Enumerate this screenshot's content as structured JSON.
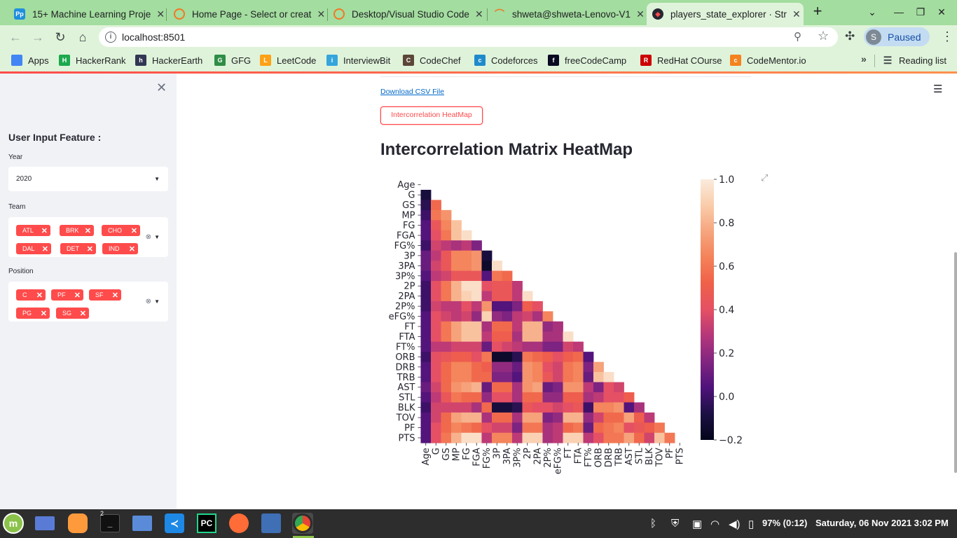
{
  "browser": {
    "tabs": [
      {
        "title": "15+ Machine Learning Proje",
        "icon": "Pp",
        "icon_color": "#1f8fde"
      },
      {
        "title": "Home Page - Select or creat",
        "icon": "",
        "icon_color": "#f37726"
      },
      {
        "title": "Desktop/Visual Studio Code",
        "icon": "",
        "icon_color": "#f37726"
      },
      {
        "title": "shweta@shweta-Lenovo-V1",
        "icon": "",
        "icon_color": "#f37726"
      },
      {
        "title": "players_state_explorer · Str",
        "icon": "",
        "icon_color": "#ff4b4b"
      }
    ],
    "url": "localhost:8501",
    "profile_initial": "S",
    "profile_label": "Paused",
    "bookmarks": [
      {
        "label": "Apps",
        "icon_color": "#4285f4",
        "icon_text": ""
      },
      {
        "label": "HackerRank",
        "icon_color": "#1ba94c",
        "icon_text": "H"
      },
      {
        "label": "HackerEarth",
        "icon_color": "#323754",
        "icon_text": "h"
      },
      {
        "label": "GFG",
        "icon_color": "#2f8d46",
        "icon_text": "G"
      },
      {
        "label": "LeetCode",
        "icon_color": "#ffa116",
        "icon_text": "L"
      },
      {
        "label": "InterviewBit",
        "icon_color": "#35a5dc",
        "icon_text": "i"
      },
      {
        "label": "CodeChef",
        "icon_color": "#5b4638",
        "icon_text": "C"
      },
      {
        "label": "Codeforces",
        "icon_color": "#1f8acb",
        "icon_text": "c"
      },
      {
        "label": "freeCodeCamp",
        "icon_color": "#0a0a23",
        "icon_text": "f"
      },
      {
        "label": "RedHat COurse",
        "icon_color": "#cc0000",
        "icon_text": "R"
      },
      {
        "label": "CodeMentor.io",
        "icon_color": "#f5821f",
        "icon_text": "c"
      }
    ],
    "reading_list": "Reading list"
  },
  "sidebar": {
    "header": "User Input Feature :",
    "year_label": "Year",
    "year_value": "2020",
    "team_label": "Team",
    "teams": [
      "ATL",
      "BRK",
      "CHO",
      "DAL",
      "DET",
      "IND"
    ],
    "position_label": "Position",
    "positions": [
      "C",
      "PF",
      "SF",
      "PG",
      "SG"
    ]
  },
  "main": {
    "download_link": "Download CSV File",
    "heatmap_button": "Intercorrelation HeatMap",
    "heading": "Intercorrelation Matrix HeatMap"
  },
  "chart_data": {
    "type": "heatmap",
    "title": "",
    "xlabel": "",
    "ylabel": "",
    "mask": "upper-triangle",
    "colormap": "rocket",
    "vmin": -0.2,
    "vmax": 1.0,
    "colorbar_ticks": [
      "1.0",
      "0.8",
      "0.6",
      "0.4",
      "0.2",
      "0.0",
      "−0.2"
    ],
    "colorbar_tick_values": [
      1.0,
      0.8,
      0.6,
      0.4,
      0.2,
      0.0,
      -0.2
    ],
    "labels": [
      "Age",
      "G",
      "GS",
      "MP",
      "FG",
      "FGA",
      "FG%",
      "3P",
      "3PA",
      "3P%",
      "2P",
      "2PA",
      "2P%",
      "eFG%",
      "FT",
      "FTA",
      "FT%",
      "ORB",
      "DRB",
      "TRB",
      "AST",
      "STL",
      "BLK",
      "TOV",
      "PF",
      "PTS"
    ],
    "rows": [
      [],
      [
        -0.1
      ],
      [
        -0.05,
        0.55
      ],
      [
        0.0,
        0.6,
        0.7
      ],
      [
        0.05,
        0.45,
        0.65,
        0.85
      ],
      [
        0.05,
        0.4,
        0.6,
        0.85,
        0.95
      ],
      [
        0.0,
        0.35,
        0.3,
        0.25,
        0.3,
        0.15
      ],
      [
        0.1,
        0.3,
        0.45,
        0.65,
        0.65,
        0.7,
        -0.1
      ],
      [
        0.1,
        0.35,
        0.45,
        0.65,
        0.65,
        0.7,
        -0.15,
        0.95
      ],
      [
        0.05,
        0.3,
        0.35,
        0.45,
        0.45,
        0.45,
        0.05,
        0.6,
        0.55
      ],
      [
        0.0,
        0.4,
        0.6,
        0.8,
        0.95,
        0.95,
        0.4,
        0.45,
        0.45,
        0.3
      ],
      [
        0.0,
        0.4,
        0.6,
        0.8,
        0.9,
        0.95,
        0.3,
        0.45,
        0.45,
        0.3,
        0.95
      ],
      [
        0.0,
        0.35,
        0.3,
        0.3,
        0.4,
        0.3,
        0.7,
        0.05,
        0.05,
        0.15,
        0.5,
        0.4
      ],
      [
        0.05,
        0.4,
        0.35,
        0.3,
        0.35,
        0.2,
        0.9,
        0.2,
        0.15,
        0.3,
        0.35,
        0.25,
        0.65
      ],
      [
        0.05,
        0.4,
        0.6,
        0.75,
        0.85,
        0.85,
        0.25,
        0.55,
        0.55,
        0.3,
        0.8,
        0.8,
        0.2,
        0.25
      ],
      [
        0.05,
        0.4,
        0.6,
        0.75,
        0.85,
        0.85,
        0.3,
        0.5,
        0.5,
        0.25,
        0.8,
        0.8,
        0.25,
        0.25,
        0.95
      ],
      [
        0.05,
        0.3,
        0.3,
        0.35,
        0.35,
        0.35,
        0.1,
        0.4,
        0.35,
        0.3,
        0.25,
        0.25,
        0.15,
        0.15,
        0.35,
        0.3
      ],
      [
        0.0,
        0.4,
        0.45,
        0.5,
        0.5,
        0.4,
        0.6,
        -0.15,
        -0.15,
        -0.05,
        0.6,
        0.55,
        0.5,
        0.4,
        0.5,
        0.55,
        0.05
      ],
      [
        0.05,
        0.4,
        0.55,
        0.65,
        0.65,
        0.55,
        0.5,
        0.2,
        0.2,
        0.1,
        0.7,
        0.65,
        0.4,
        0.35,
        0.6,
        0.65,
        0.15,
        0.75
      ],
      [
        0.05,
        0.4,
        0.55,
        0.65,
        0.65,
        0.55,
        0.55,
        0.15,
        0.15,
        0.05,
        0.7,
        0.65,
        0.45,
        0.35,
        0.6,
        0.65,
        0.1,
        0.85,
        0.95
      ],
      [
        0.1,
        0.35,
        0.55,
        0.7,
        0.75,
        0.8,
        0.1,
        0.55,
        0.55,
        0.25,
        0.7,
        0.75,
        0.1,
        0.15,
        0.7,
        0.7,
        0.3,
        0.15,
        0.4,
        0.35
      ],
      [
        0.05,
        0.3,
        0.45,
        0.6,
        0.55,
        0.55,
        0.2,
        0.4,
        0.4,
        0.25,
        0.55,
        0.55,
        0.2,
        0.2,
        0.5,
        0.5,
        0.25,
        0.3,
        0.4,
        0.4,
        0.5
      ],
      [
        0.0,
        0.35,
        0.35,
        0.35,
        0.35,
        0.25,
        0.55,
        -0.1,
        -0.1,
        -0.05,
        0.45,
        0.4,
        0.4,
        0.35,
        0.4,
        0.45,
        0.0,
        0.65,
        0.65,
        0.7,
        0.05,
        0.25
      ],
      [
        0.05,
        0.35,
        0.55,
        0.75,
        0.8,
        0.8,
        0.25,
        0.55,
        0.55,
        0.25,
        0.75,
        0.75,
        0.15,
        0.2,
        0.8,
        0.8,
        0.2,
        0.35,
        0.55,
        0.55,
        0.75,
        0.5,
        0.3
      ],
      [
        0.05,
        0.4,
        0.55,
        0.65,
        0.6,
        0.55,
        0.4,
        0.35,
        0.35,
        0.15,
        0.6,
        0.6,
        0.25,
        0.3,
        0.55,
        0.6,
        0.1,
        0.55,
        0.6,
        0.65,
        0.4,
        0.45,
        0.5,
        0.6
      ],
      [
        0.05,
        0.4,
        0.6,
        0.8,
        0.95,
        0.95,
        0.3,
        0.65,
        0.65,
        0.3,
        0.9,
        0.9,
        0.25,
        0.3,
        0.9,
        0.9,
        0.3,
        0.4,
        0.6,
        0.6,
        0.75,
        0.55,
        0.35,
        0.85,
        0.6
      ]
    ]
  },
  "taskbar": {
    "terminal_badge": "2",
    "battery": "97% (0:12)",
    "clock": "Saturday, 06 Nov 2021  3:02 PM"
  }
}
